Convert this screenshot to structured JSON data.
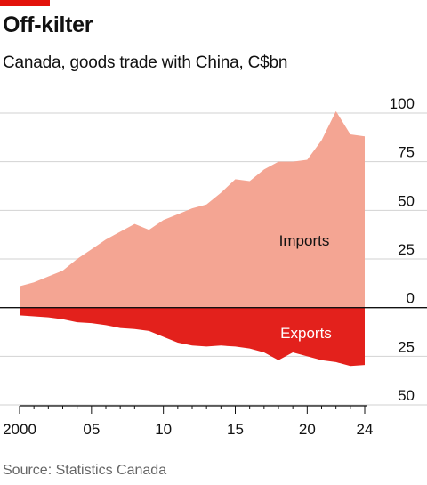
{
  "header": {
    "title": "Off-kilter",
    "subtitle": "Canada, goods trade with China, C$bn"
  },
  "footer": {
    "source": "Source: Statistics Canada"
  },
  "colors": {
    "imports": "#f4a593",
    "exports": "#e3211c",
    "accent": "#e3120b"
  },
  "chart_data": {
    "type": "area",
    "title": "Off-kilter",
    "subtitle": "Canada, goods trade with China, C$bn",
    "xlim": [
      2000,
      2024
    ],
    "ylim": [
      -50,
      100
    ],
    "x_ticks": [
      {
        "value": 2000,
        "label": "2000"
      },
      {
        "value": 2005,
        "label": "05"
      },
      {
        "value": 2010,
        "label": "10"
      },
      {
        "value": 2015,
        "label": "15"
      },
      {
        "value": 2020,
        "label": "20"
      },
      {
        "value": 2024,
        "label": "24"
      }
    ],
    "y_ticks": [
      {
        "value": 100,
        "label": "100"
      },
      {
        "value": 75,
        "label": "75"
      },
      {
        "value": 50,
        "label": "50"
      },
      {
        "value": 25,
        "label": "25"
      },
      {
        "value": 0,
        "label": "0"
      },
      {
        "value": -25,
        "label": "25"
      },
      {
        "value": -50,
        "label": "50"
      }
    ],
    "grid": true,
    "x": [
      2000,
      2001,
      2002,
      2003,
      2004,
      2005,
      2006,
      2007,
      2008,
      2009,
      2010,
      2011,
      2012,
      2013,
      2014,
      2015,
      2016,
      2017,
      2018,
      2019,
      2020,
      2021,
      2022,
      2023,
      2024
    ],
    "series": [
      {
        "name": "Imports",
        "values": [
          11,
          13,
          16,
          19,
          25,
          30,
          35,
          39,
          43,
          40,
          45,
          48,
          51,
          53,
          59,
          66,
          65,
          71,
          75,
          75,
          76,
          86,
          101,
          89,
          88
        ]
      },
      {
        "name": "Exports",
        "values": [
          -4,
          -4.5,
          -5,
          -6,
          -7.5,
          -8,
          -9,
          -10.5,
          -11,
          -12,
          -15,
          -18,
          -19.5,
          -20,
          -19.5,
          -20,
          -21,
          -23,
          -27,
          -23,
          -25,
          -27,
          -28,
          -30,
          -29.5
        ]
      }
    ]
  }
}
